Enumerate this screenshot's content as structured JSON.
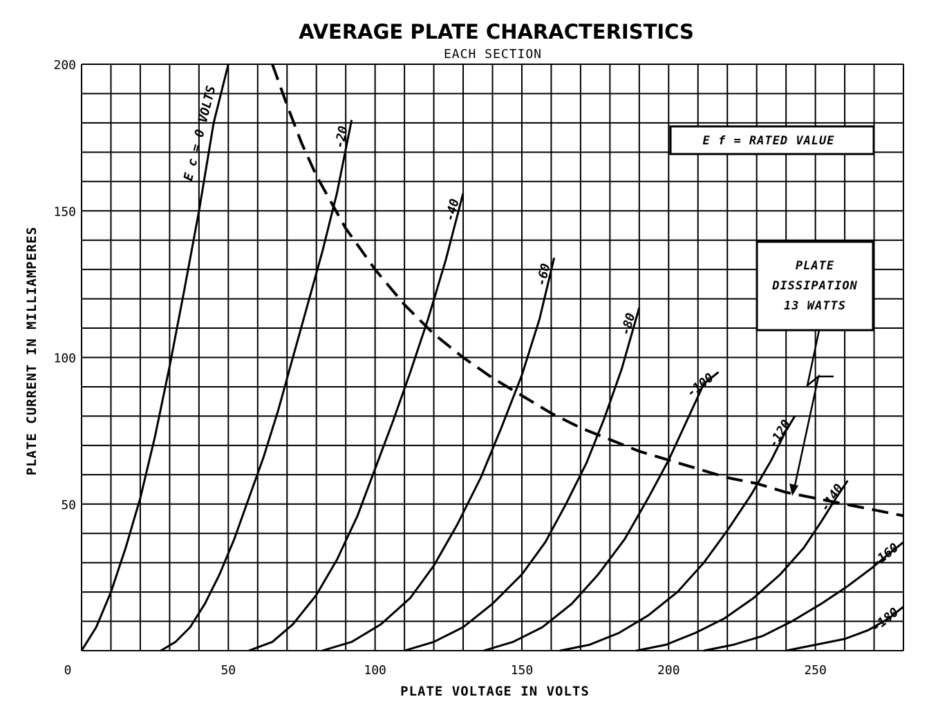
{
  "chart_data": {
    "type": "line",
    "title": "AVERAGE PLATE CHARACTERISTICS",
    "subtitle": "EACH SECTION",
    "xlabel": "PLATE VOLTAGE IN VOLTS",
    "ylabel": "PLATE CURRENT IN MILLIAMPERES",
    "xlim": [
      0,
      280
    ],
    "ylim": [
      0,
      200
    ],
    "x_ticks": [
      0,
      50,
      100,
      150,
      200,
      250
    ],
    "y_ticks": [
      50,
      100,
      150,
      200
    ],
    "grid": true,
    "grid_step": {
      "x": 10,
      "y": 10
    },
    "annotations": {
      "filament": "E f = RATED VALUE",
      "dissipation_lines": [
        "PLATE",
        "DISSIPATION",
        "13 WATTS"
      ]
    },
    "series": [
      {
        "name": "E c = 0 VOLTS",
        "points": [
          [
            0,
            0
          ],
          [
            5,
            8
          ],
          [
            10,
            20
          ],
          [
            15,
            35
          ],
          [
            20,
            52
          ],
          [
            25,
            73
          ],
          [
            30,
            97
          ],
          [
            35,
            123
          ],
          [
            40,
            150
          ],
          [
            45,
            180
          ],
          [
            50,
            200
          ]
        ]
      },
      {
        "name": "-20",
        "points": [
          [
            27,
            0
          ],
          [
            32,
            3
          ],
          [
            37,
            8
          ],
          [
            42,
            16
          ],
          [
            47,
            26
          ],
          [
            52,
            38
          ],
          [
            57,
            52
          ],
          [
            62,
            66
          ],
          [
            67,
            82
          ],
          [
            72,
            100
          ],
          [
            77,
            118
          ],
          [
            82,
            136
          ],
          [
            87,
            156
          ],
          [
            92,
            181
          ]
        ]
      },
      {
        "name": "-40",
        "points": [
          [
            57,
            0
          ],
          [
            65,
            3
          ],
          [
            72,
            9
          ],
          [
            80,
            19
          ],
          [
            87,
            31
          ],
          [
            94,
            46
          ],
          [
            100,
            62
          ],
          [
            106,
            78
          ],
          [
            112,
            95
          ],
          [
            118,
            113
          ],
          [
            124,
            133
          ],
          [
            130,
            156
          ]
        ]
      },
      {
        "name": "-60",
        "points": [
          [
            82,
            0
          ],
          [
            92,
            3
          ],
          [
            102,
            9
          ],
          [
            112,
            18
          ],
          [
            120,
            29
          ],
          [
            128,
            43
          ],
          [
            136,
            59
          ],
          [
            143,
            76
          ],
          [
            150,
            94
          ],
          [
            156,
            113
          ],
          [
            161,
            134
          ]
        ]
      },
      {
        "name": "-80",
        "points": [
          [
            110,
            0
          ],
          [
            120,
            3
          ],
          [
            130,
            8
          ],
          [
            140,
            16
          ],
          [
            150,
            26
          ],
          [
            158,
            37
          ],
          [
            165,
            50
          ],
          [
            172,
            64
          ],
          [
            178,
            79
          ],
          [
            184,
            96
          ],
          [
            190,
            117
          ]
        ]
      },
      {
        "name": "-100",
        "points": [
          [
            137,
            0
          ],
          [
            147,
            3
          ],
          [
            157,
            8
          ],
          [
            167,
            16
          ],
          [
            176,
            26
          ],
          [
            185,
            38
          ],
          [
            193,
            52
          ],
          [
            200,
            65
          ],
          [
            206,
            78
          ],
          [
            212,
            91
          ],
          [
            217,
            95
          ]
        ]
      },
      {
        "name": "-120",
        "points": [
          [
            163,
            0
          ],
          [
            173,
            2
          ],
          [
            183,
            6
          ],
          [
            193,
            12
          ],
          [
            203,
            20
          ],
          [
            212,
            30
          ],
          [
            220,
            41
          ],
          [
            228,
            53
          ],
          [
            235,
            65
          ],
          [
            240,
            75
          ],
          [
            243,
            80
          ]
        ]
      },
      {
        "name": "-140",
        "points": [
          [
            189,
            0
          ],
          [
            199,
            2
          ],
          [
            209,
            6
          ],
          [
            219,
            11
          ],
          [
            229,
            18
          ],
          [
            238,
            26
          ],
          [
            246,
            35
          ],
          [
            252,
            44
          ],
          [
            257,
            52
          ],
          [
            261,
            58
          ]
        ]
      },
      {
        "name": "-160",
        "points": [
          [
            212,
            0
          ],
          [
            222,
            2
          ],
          [
            232,
            5
          ],
          [
            242,
            10
          ],
          [
            252,
            16
          ],
          [
            261,
            22
          ],
          [
            269,
            28
          ],
          [
            275,
            33
          ],
          [
            280,
            37
          ]
        ]
      },
      {
        "name": "-180",
        "points": [
          [
            240,
            0
          ],
          [
            250,
            2
          ],
          [
            260,
            4
          ],
          [
            268,
            7
          ],
          [
            275,
            11
          ],
          [
            280,
            15
          ]
        ]
      }
    ],
    "dissipation_curve": {
      "name": "PLATE DISSIPATION 13 WATTS",
      "style": "dashed",
      "points": [
        [
          65,
          200
        ],
        [
          70,
          186
        ],
        [
          75,
          173
        ],
        [
          80,
          162
        ],
        [
          85,
          153
        ],
        [
          90,
          144
        ],
        [
          95,
          137
        ],
        [
          100,
          130
        ],
        [
          105,
          124
        ],
        [
          110,
          118
        ],
        [
          115,
          113
        ],
        [
          120,
          108
        ],
        [
          130,
          100
        ],
        [
          140,
          93
        ],
        [
          150,
          87
        ],
        [
          160,
          81
        ],
        [
          170,
          76
        ],
        [
          180,
          72
        ],
        [
          190,
          68
        ],
        [
          200,
          65
        ],
        [
          210,
          62
        ],
        [
          220,
          59
        ],
        [
          230,
          57
        ],
        [
          240,
          54
        ],
        [
          250,
          52
        ],
        [
          260,
          50
        ],
        [
          270,
          48
        ],
        [
          280,
          46
        ]
      ]
    }
  }
}
